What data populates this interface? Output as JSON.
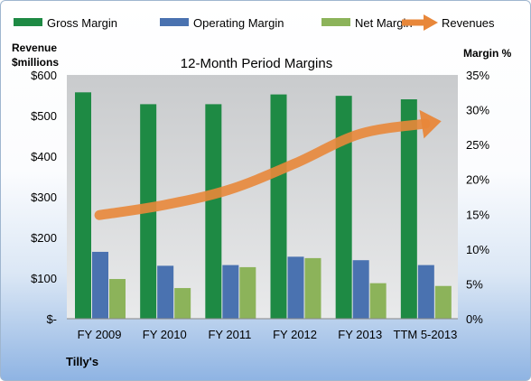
{
  "chart_data": {
    "type": "bar",
    "title": "12-Month Period Margins",
    "company": "Tilly's",
    "y_left_label_line1": "Revenue",
    "y_left_label_line2": "$millions",
    "y_right_label": "Margin %",
    "categories": [
      "FY 2009",
      "FY 2010",
      "FY 2011",
      "FY 2012",
      "FY 2013",
      "TTM 5-2013"
    ],
    "y_left_ticks": [
      "$-",
      "$100",
      "$200",
      "$300",
      "$400",
      "$500",
      "$600"
    ],
    "y_right_ticks": [
      "0%",
      "5%",
      "10%",
      "15%",
      "20%",
      "25%",
      "30%",
      "35%"
    ],
    "ylim_left": [
      0,
      600
    ],
    "ylim_right": [
      0,
      35
    ],
    "grid": false,
    "legend_position": "top",
    "series": [
      {
        "name": "Gross Margin",
        "axis": "right",
        "color": "#1e8a44",
        "values": [
          32.5,
          30.8,
          30.8,
          32.2,
          32.0,
          31.5
        ]
      },
      {
        "name": "Operating Margin",
        "axis": "right",
        "color": "#4a72b0",
        "values": [
          9.6,
          7.6,
          7.7,
          8.9,
          8.4,
          7.7
        ]
      },
      {
        "name": "Net Margin",
        "axis": "right",
        "color": "#8cb35a",
        "values": [
          5.7,
          4.4,
          7.4,
          8.7,
          5.1,
          4.7
        ]
      },
      {
        "name": "Revenues",
        "axis": "left",
        "type": "line",
        "color": "#e8873a",
        "values": [
          255,
          280,
          318,
          382,
          455,
          480
        ]
      }
    ]
  }
}
